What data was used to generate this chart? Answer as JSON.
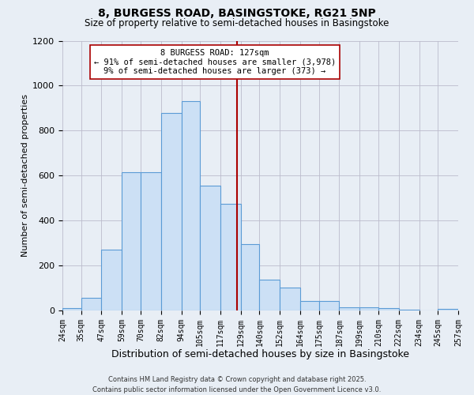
{
  "title": "8, BURGESS ROAD, BASINGSTOKE, RG21 5NP",
  "subtitle": "Size of property relative to semi-detached houses in Basingstoke",
  "xlabel": "Distribution of semi-detached houses by size in Basingstoke",
  "ylabel": "Number of semi-detached properties",
  "footer_line1": "Contains HM Land Registry data © Crown copyright and database right 2025.",
  "footer_line2": "Contains public sector information licensed under the Open Government Licence v3.0.",
  "property_size": 127,
  "property_label": "8 BURGESS ROAD: 127sqm",
  "pct_smaller": 91,
  "count_smaller": 3978,
  "pct_larger": 9,
  "count_larger": 373,
  "bar_color": "#cce0f5",
  "bar_edge_color": "#5b9bd5",
  "vline_color": "#aa0000",
  "annotation_box_edge": "#aa0000",
  "annotation_box_face": "#ffffff",
  "bins": [
    24,
    35,
    47,
    59,
    70,
    82,
    94,
    105,
    117,
    129,
    140,
    152,
    164,
    175,
    187,
    199,
    210,
    222,
    234,
    245,
    257
  ],
  "bin_labels": [
    "24sqm",
    "35sqm",
    "47sqm",
    "59sqm",
    "70sqm",
    "82sqm",
    "94sqm",
    "105sqm",
    "117sqm",
    "129sqm",
    "140sqm",
    "152sqm",
    "164sqm",
    "175sqm",
    "187sqm",
    "199sqm",
    "210sqm",
    "222sqm",
    "234sqm",
    "245sqm",
    "257sqm"
  ],
  "counts": [
    10,
    55,
    270,
    615,
    615,
    880,
    930,
    555,
    475,
    295,
    135,
    100,
    40,
    40,
    15,
    15,
    10,
    2,
    0,
    5
  ],
  "ylim": [
    0,
    1200
  ],
  "yticks": [
    0,
    200,
    400,
    600,
    800,
    1000,
    1200
  ],
  "grid_color": "#bbbbcc",
  "bg_color": "#e8eef5",
  "title_fontsize": 10,
  "subtitle_fontsize": 8.5,
  "ann_fontsize": 7.5
}
